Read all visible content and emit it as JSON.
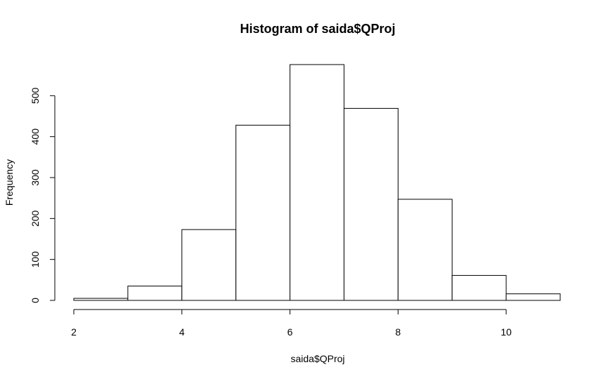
{
  "chart_data": {
    "type": "bar",
    "title": "Histogram of saida$QProj",
    "xlabel": "saida$QProj",
    "ylabel": "Frequency",
    "bins": [
      {
        "from": 2,
        "to": 3,
        "count": 5
      },
      {
        "from": 3,
        "to": 4,
        "count": 35
      },
      {
        "from": 4,
        "to": 5,
        "count": 173
      },
      {
        "from": 5,
        "to": 6,
        "count": 428
      },
      {
        "from": 6,
        "to": 7,
        "count": 576
      },
      {
        "from": 7,
        "to": 8,
        "count": 469
      },
      {
        "from": 8,
        "to": 9,
        "count": 247
      },
      {
        "from": 9,
        "to": 10,
        "count": 61
      },
      {
        "from": 10,
        "to": 11,
        "count": 16
      }
    ],
    "xlim": [
      2,
      11
    ],
    "ylim": [
      0,
      576
    ],
    "x_ticks": [
      2,
      4,
      6,
      8,
      10
    ],
    "y_ticks": [
      0,
      100,
      200,
      300,
      400,
      500
    ],
    "grid": false,
    "colors": {
      "bar_fill": "#ffffff",
      "bar_stroke": "#000000"
    }
  }
}
